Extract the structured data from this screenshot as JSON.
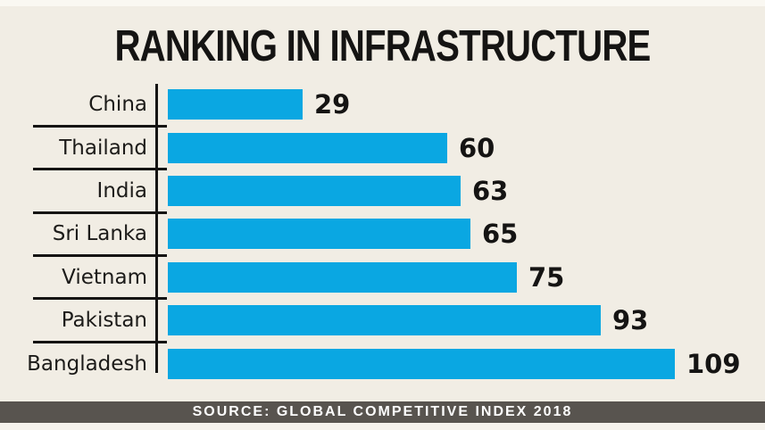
{
  "title": "RANKING IN INFRASTRUCTURE",
  "source": "SOURCE: GLOBAL COMPETITIVE INDEX 2018",
  "colors": {
    "background": "#f1ede4",
    "bar": "#0aa7e2",
    "line": "#151413",
    "source_bar_background": "#58544f",
    "source_bar_text": "#fdfdfd"
  },
  "chart_data": {
    "type": "bar",
    "orientation": "horizontal",
    "title": "RANKING IN INFRASTRUCTURE",
    "categories": [
      "China",
      "Thailand",
      "India",
      "Sri Lanka",
      "Vietnam",
      "Pakistan",
      "Bangladesh"
    ],
    "values": [
      29,
      60,
      63,
      65,
      75,
      93,
      109
    ],
    "value_labels_shown": true,
    "xlabel": "",
    "ylabel": "",
    "xlim": [
      0,
      115
    ],
    "grid": false,
    "legend": false,
    "source": "SOURCE: GLOBAL COMPETITIVE INDEX 2018"
  }
}
